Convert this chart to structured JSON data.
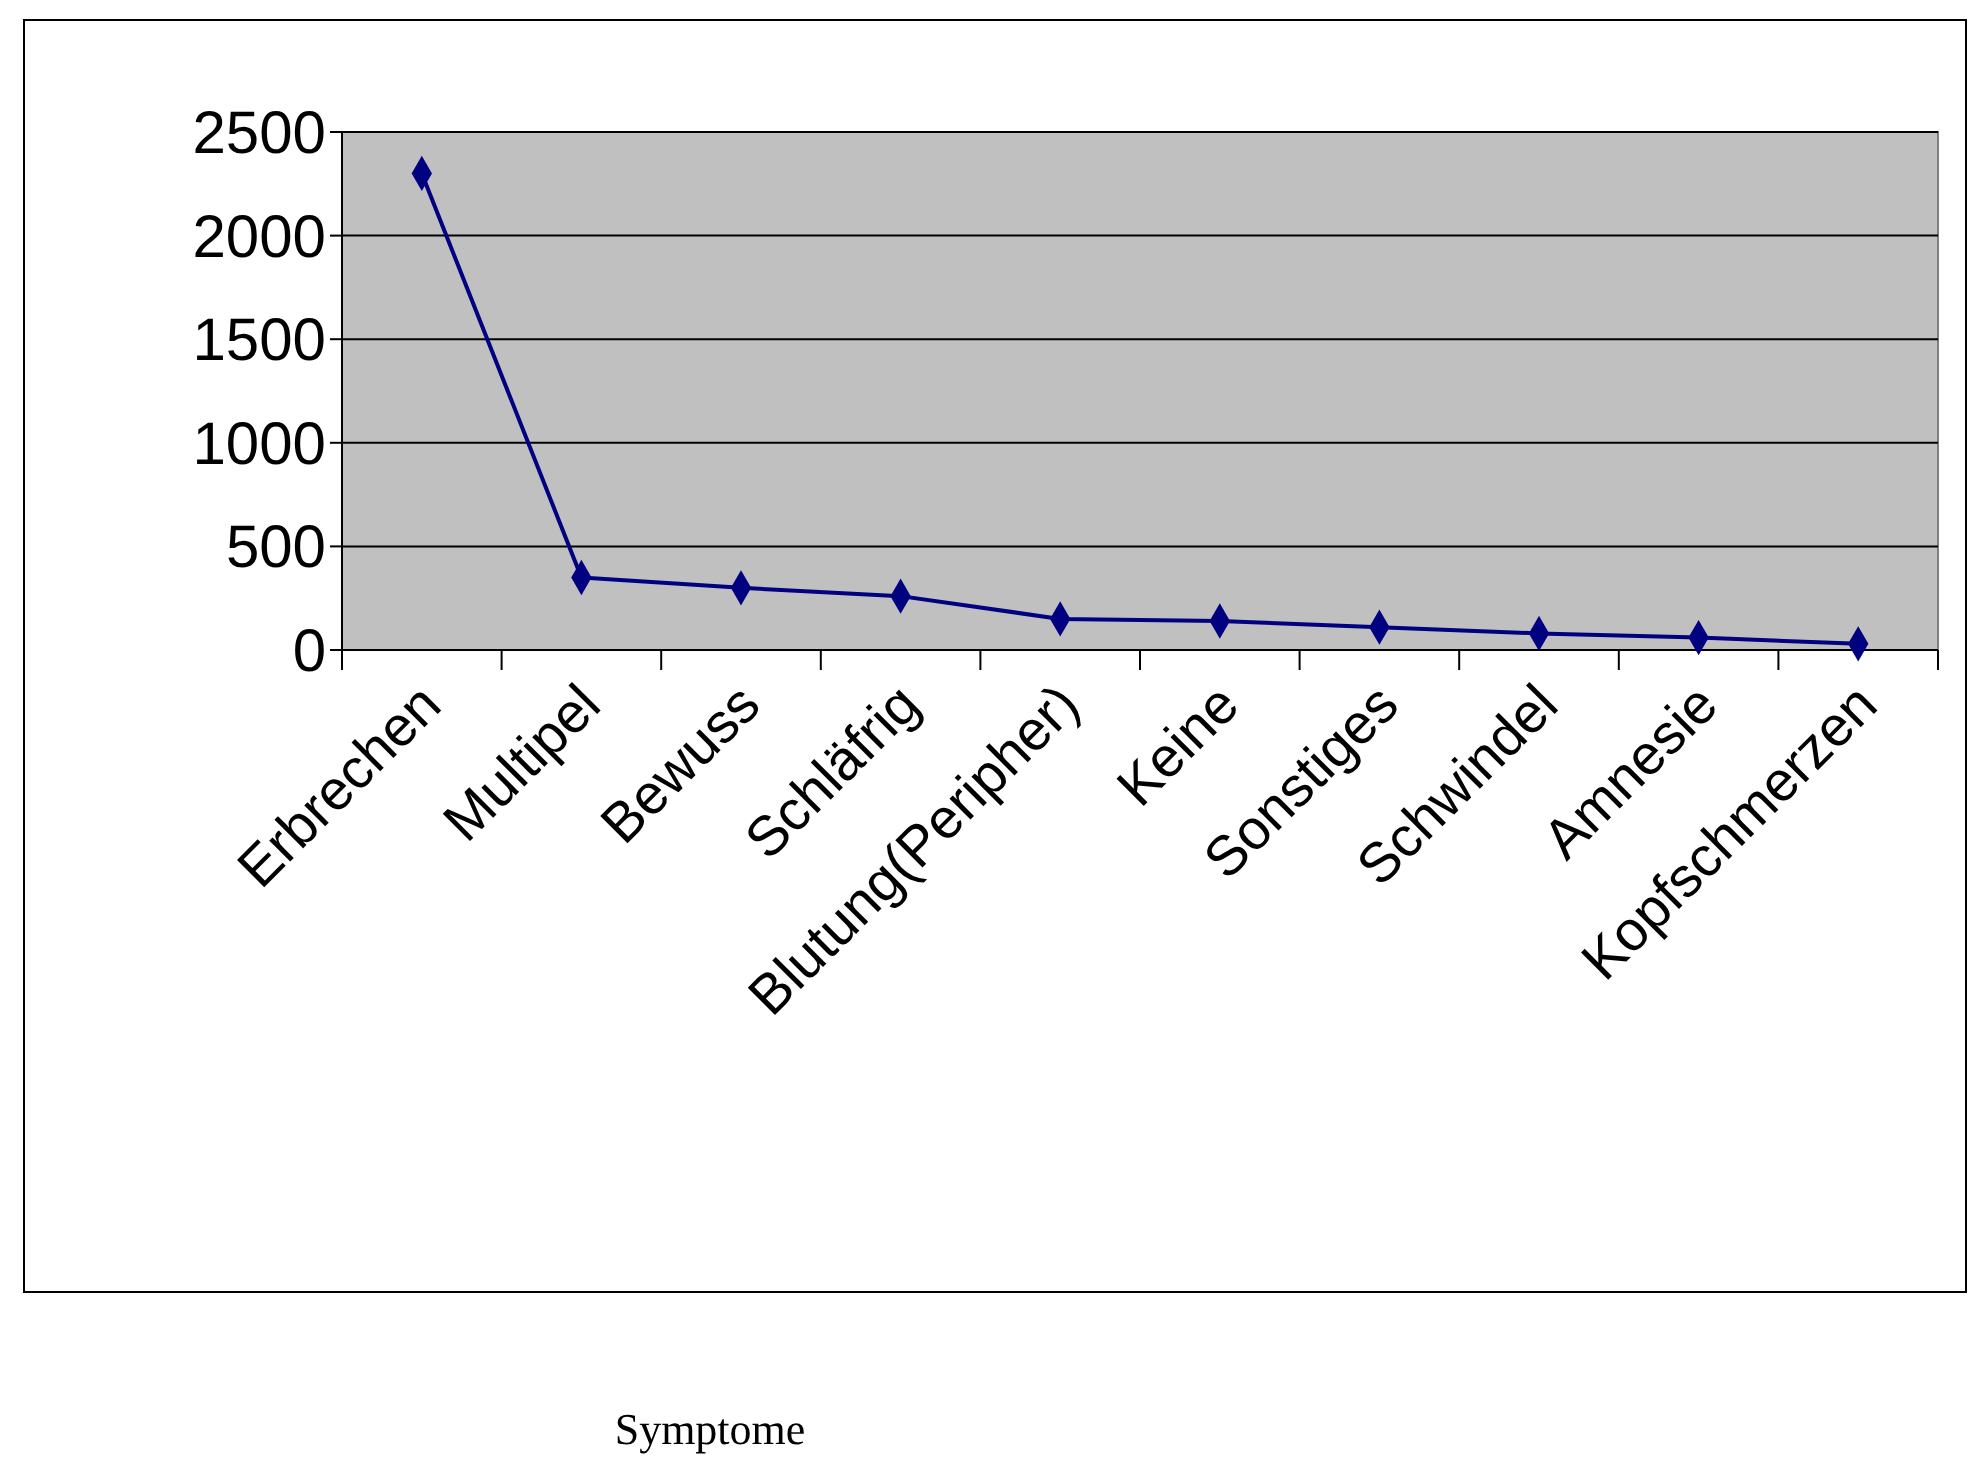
{
  "chart_data": {
    "type": "line",
    "annotations": [
      "Symptome"
    ],
    "categories": [
      "Erbrechen",
      "Multipel",
      "Bewuss",
      "Schläfrig",
      "Blutung(Peripher)",
      "Keine",
      "Sonstiges",
      "Schwindel",
      "Amnesie",
      "Kopfschmerzen"
    ],
    "series": [
      {
        "color": "#000080",
        "values": [
          2300,
          350,
          300,
          260,
          150,
          140,
          110,
          80,
          60,
          30
        ]
      }
    ],
    "ylim": [
      0,
      2500
    ],
    "yticks": [
      0,
      500,
      1000,
      1500,
      2000,
      2500
    ],
    "grid": "y",
    "marker": "diamond"
  }
}
